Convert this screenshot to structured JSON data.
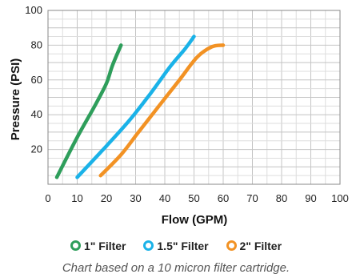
{
  "chart_data": {
    "type": "line",
    "xlabel": "Flow (GPM)",
    "ylabel": "Pressure (PSI)",
    "xlim": [
      0,
      100
    ],
    "ylim": [
      0,
      100
    ],
    "xticks": [
      "0",
      "10",
      "20",
      "30",
      "40",
      "50",
      "60",
      "70",
      "80",
      "90",
      "100"
    ],
    "yticks": [
      "20",
      "40",
      "60",
      "80",
      "100"
    ],
    "grid": true,
    "legend_position": "bottom",
    "series": [
      {
        "name": "1\" Filter",
        "color": "#2e9e5b",
        "points": [
          [
            3,
            4
          ],
          [
            10,
            27
          ],
          [
            16,
            45
          ],
          [
            20,
            58
          ],
          [
            22,
            68
          ],
          [
            25,
            80
          ]
        ]
      },
      {
        "name": "1.5\" Filter",
        "color": "#1ab2e8",
        "points": [
          [
            10,
            4
          ],
          [
            20,
            22
          ],
          [
            28,
            37
          ],
          [
            35,
            52
          ],
          [
            42,
            68
          ],
          [
            47,
            78
          ],
          [
            50,
            85
          ]
        ]
      },
      {
        "name": "2\" Filter",
        "color": "#f29224",
        "points": [
          [
            18,
            5
          ],
          [
            25,
            17
          ],
          [
            31,
            30
          ],
          [
            38,
            45
          ],
          [
            45,
            60
          ],
          [
            51,
            73
          ],
          [
            56,
            79
          ],
          [
            60,
            80
          ]
        ]
      }
    ],
    "note": "Chart based on a 10 micron filter cartridge."
  }
}
